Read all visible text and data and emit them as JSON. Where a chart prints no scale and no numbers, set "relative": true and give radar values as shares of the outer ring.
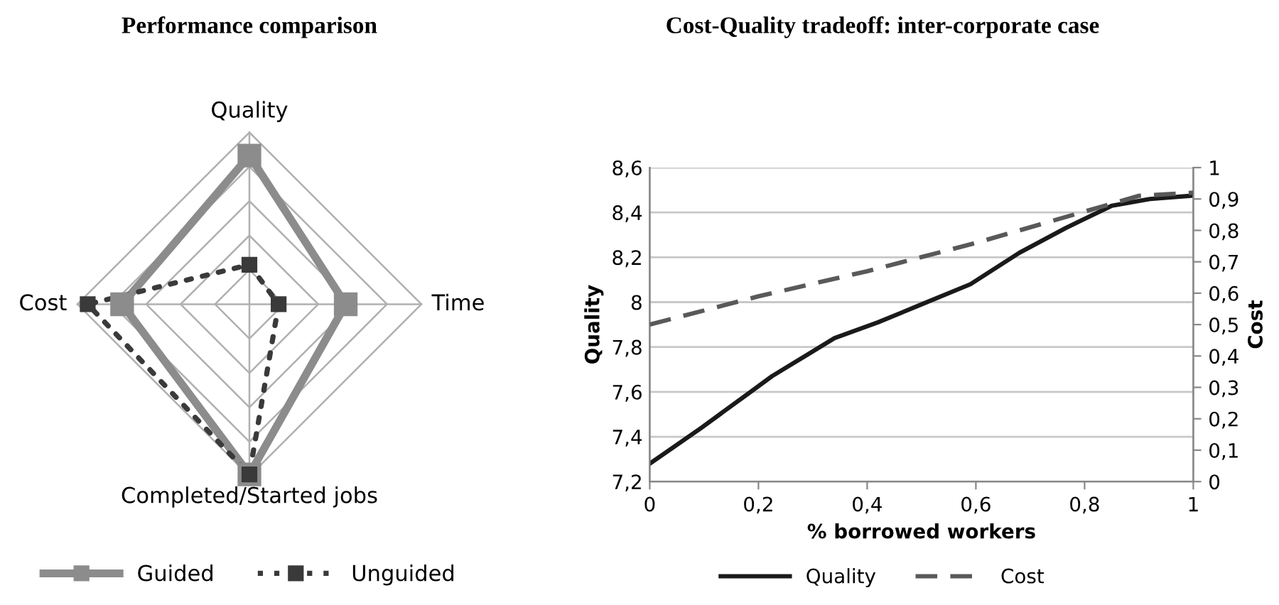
{
  "chart_data": [
    {
      "type": "radar",
      "title": "Performance comparison",
      "relative": true,
      "grid": true,
      "legend": "bottom",
      "marker": "square",
      "categories": [
        "Quality",
        "Time",
        "Completed/Started jobs",
        "Cost"
      ],
      "series": [
        {
          "name": "Guided",
          "color": "#8c8c8c",
          "line_style": "solid",
          "values": [
            0.865,
            0.56,
            0.99,
            0.74
          ]
        },
        {
          "name": "Unguided",
          "color": "#3a3a3a",
          "line_style": "dotted",
          "values": [
            0.23,
            0.17,
            0.99,
            0.94
          ]
        }
      ]
    },
    {
      "type": "line",
      "title": "Cost-Quality tradeoff: inter-corporate case",
      "xlabel": "% borrowed workers",
      "ylabel": "Quality",
      "y2label": "Cost",
      "grid": "y",
      "legend": "bottom",
      "marker": "none",
      "xlim": [
        0,
        1
      ],
      "xticks": [
        0,
        {
          "value": 0.2,
          "label": "0,2"
        },
        {
          "value": 0.4,
          "label": "0,4"
        },
        {
          "value": 0.6,
          "label": "0,6"
        },
        {
          "value": 0.8,
          "label": "0,8"
        },
        1
      ],
      "ylim": [
        7.2,
        8.6
      ],
      "yticks": [
        {
          "value": 7.2,
          "label": "7,2"
        },
        {
          "value": 7.4,
          "label": "7,4"
        },
        {
          "value": 7.6,
          "label": "7,6"
        },
        {
          "value": 7.8,
          "label": "7,8"
        },
        8,
        {
          "value": 8.2,
          "label": "8,2"
        },
        {
          "value": 8.4,
          "label": "8,4"
        },
        {
          "value": 8.6,
          "label": "8,6"
        }
      ],
      "y2lim": [
        0,
        1
      ],
      "y2ticks": [
        0,
        {
          "value": 0.1,
          "label": "0,1"
        },
        {
          "value": 0.2,
          "label": "0,2"
        },
        {
          "value": 0.3,
          "label": "0,3"
        },
        {
          "value": 0.4,
          "label": "0,4"
        },
        {
          "value": 0.5,
          "label": "0,5"
        },
        {
          "value": 0.6,
          "label": "0,6"
        },
        {
          "value": 0.7,
          "label": "0,7"
        },
        {
          "value": 0.8,
          "label": "0,8"
        },
        {
          "value": 0.9,
          "label": "0,9"
        },
        1
      ],
      "series": [
        {
          "name": "Quality",
          "color": "#1a1a1a",
          "line_style": "solid",
          "x": [
            0,
            0.095,
            0.18,
            0.225,
            0.286,
            0.34,
            0.42,
            0.5,
            0.59,
            0.68,
            0.765,
            0.85,
            0.92,
            1
          ],
          "values": [
            7.28,
            7.44,
            7.59,
            7.67,
            7.76,
            7.84,
            7.91,
            7.99,
            8.08,
            8.22,
            8.33,
            8.43,
            8.46,
            8.475
          ]
        },
        {
          "name": "Cost",
          "color": "#595959",
          "line_style": "dashed",
          "axis": "y2",
          "x": [
            0,
            0.2,
            0.4,
            0.6,
            0.8,
            0.9,
            1
          ],
          "values": [
            0.5,
            0.59,
            0.67,
            0.76,
            0.86,
            0.91,
            0.92
          ]
        }
      ]
    }
  ]
}
